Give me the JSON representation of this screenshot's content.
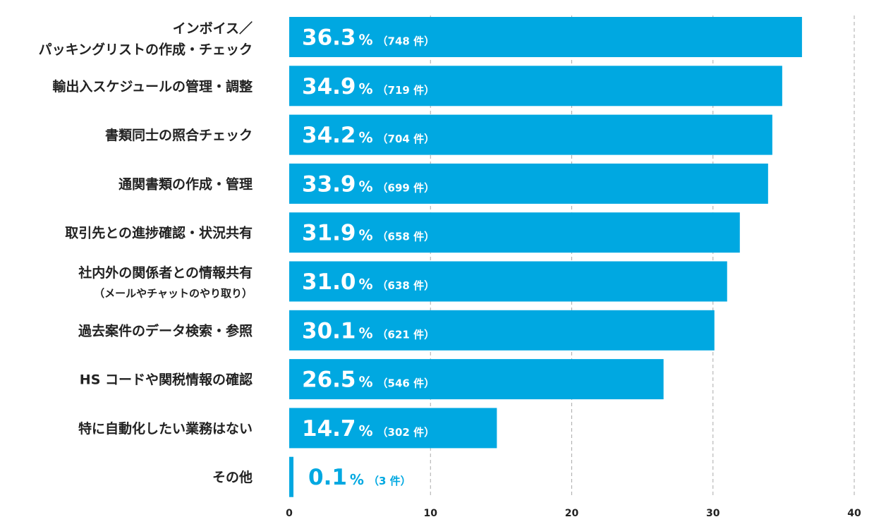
{
  "chart_data": {
    "type": "bar",
    "orientation": "horizontal",
    "categories": [
      [
        "インボイス／",
        "パッキングリストの作成・チェック"
      ],
      [
        "輸出入スケジュールの管理・調整"
      ],
      [
        "書類同士の照合チェック"
      ],
      [
        "通関書類の作成・管理"
      ],
      [
        "取引先との進捗確認・状況共有"
      ],
      [
        "社内外の関係者との情報共有",
        "（メールやチャットのやり取り）"
      ],
      [
        "過去案件のデータ検索・参照"
      ],
      [
        "HS コードや関税情報の確認"
      ],
      [
        "特に自動化したい業務はない"
      ],
      [
        "その他"
      ]
    ],
    "values": [
      36.3,
      34.9,
      34.2,
      33.9,
      31.9,
      31.0,
      30.1,
      26.5,
      14.7,
      0.1
    ],
    "value_labels": [
      "36.3",
      "34.9",
      "34.2",
      "33.9",
      "31.9",
      "31.0",
      "30.1",
      "26.5",
      "14.7",
      "0.1"
    ],
    "value_suffix": "%",
    "counts": [
      "（748 件）",
      "（719 件）",
      "（704 件）",
      "（699 件）",
      "（658 件）",
      "（638 件）",
      "（621 件）",
      "（546 件）",
      "（302 件）",
      "（3 件）"
    ],
    "x_ticks": [
      "0",
      "10",
      "20",
      "30",
      "40"
    ],
    "xlim": [
      0,
      40
    ],
    "grid": "vertical-dashed",
    "colors": {
      "bar": "#00a8e1",
      "label_on_bar": "#ffffff",
      "label_outside": "#00a8e1",
      "grid": "#aaaaaa",
      "text": "#222222"
    }
  }
}
